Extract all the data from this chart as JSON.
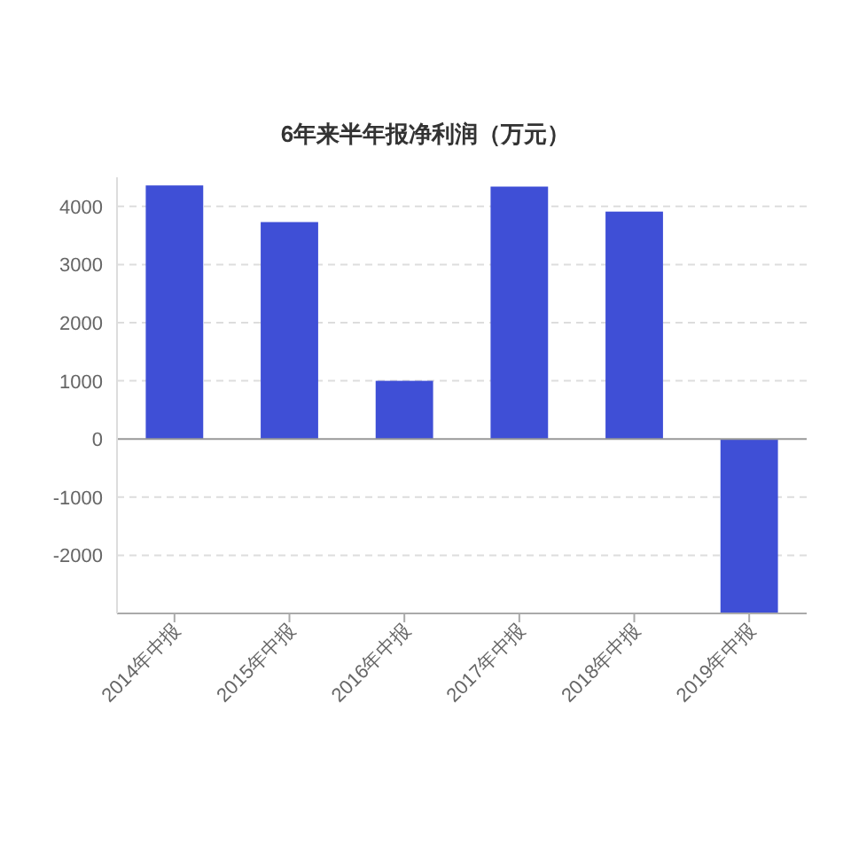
{
  "chart_data": {
    "type": "bar",
    "title": "6年来半年报净利润（万元）",
    "categories": [
      "2014年中报",
      "2015年中报",
      "2016年中报",
      "2017年中报",
      "2018年中报",
      "2019年中报"
    ],
    "values": [
      4360,
      3730,
      1000,
      4340,
      3910,
      -3000
    ],
    "color": "#3f4fd6",
    "ylim": [
      -3000,
      4500
    ],
    "yticks": [
      -2000,
      -1000,
      0,
      1000,
      2000,
      3000,
      4000
    ],
    "grid": "y"
  }
}
